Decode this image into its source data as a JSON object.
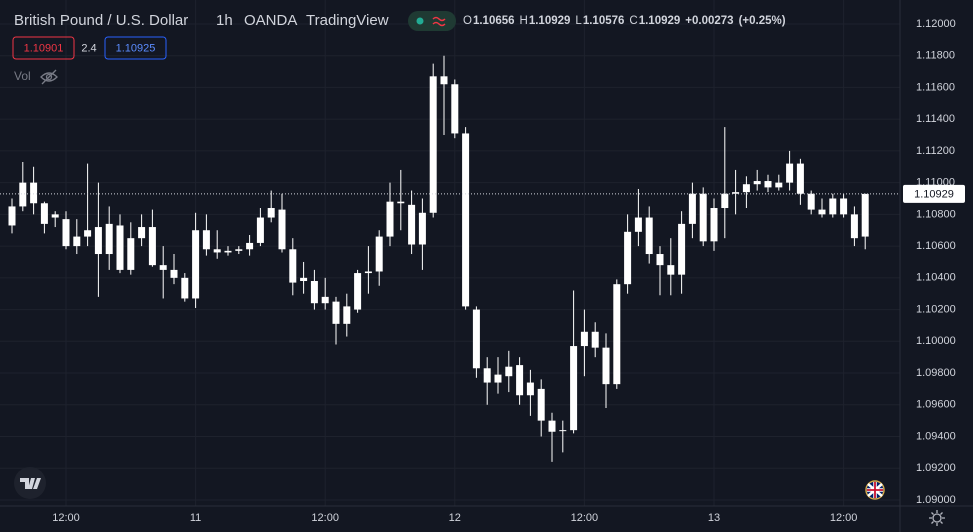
{
  "chart_data": {
    "type": "candlestick",
    "title": "British Pound / U.S. Dollar",
    "interval": "1h",
    "source": "OANDA",
    "platform": "TradingView",
    "ohlc_legend": [
      {
        "key": "O",
        "value": 1.10656
      },
      {
        "key": "H",
        "value": 1.10929
      },
      {
        "key": "L",
        "value": 1.10576
      },
      {
        "key": "C",
        "value": 1.10929
      }
    ],
    "change": {
      "value": 0.00273,
      "label": "+0.00273"
    },
    "change_percent": {
      "value": 0.25,
      "label": "(+0.25%)"
    },
    "bid": 1.10901,
    "spread": 2.4,
    "ask": 1.10925,
    "volume_label": "Vol",
    "color": "#ffffff",
    "grid": true,
    "categories": [
      null,
      null,
      null,
      null,
      null,
      "12:00",
      null,
      null,
      null,
      null,
      null,
      null,
      null,
      null,
      null,
      null,
      null,
      "11",
      null,
      null,
      null,
      null,
      null,
      null,
      null,
      null,
      null,
      null,
      null,
      "12:00",
      null,
      null,
      null,
      null,
      null,
      null,
      null,
      null,
      null,
      null,
      null,
      "12",
      null,
      null,
      null,
      null,
      null,
      null,
      null,
      null,
      null,
      null,
      null,
      "12:00",
      null,
      null,
      null,
      null,
      null,
      null,
      null,
      null,
      null,
      null,
      null,
      "13",
      null,
      null,
      null,
      null,
      null,
      null,
      null,
      null,
      null,
      null,
      null,
      "12:00",
      null,
      null
    ],
    "open": [
      1.1073,
      1.1085,
      1.11,
      1.1087,
      1.1078,
      1.1077,
      1.106,
      1.1066,
      1.1072,
      1.1055,
      1.1073,
      1.1045,
      1.1065,
      1.1072,
      1.1048,
      1.1045,
      1.104,
      1.1027,
      1.107,
      1.1058,
      1.1056,
      1.1057,
      1.1058,
      1.1062,
      1.1078,
      1.1083,
      1.1058,
      1.104,
      1.1038,
      1.1024,
      1.1025,
      1.1011,
      1.102,
      1.1043,
      1.1044,
      1.1066,
      1.1088,
      1.1086,
      1.1061,
      1.1081,
      1.1167,
      1.1162,
      1.1131,
      1.102,
      1.0983,
      1.0974,
      1.0978,
      1.0985,
      1.0966,
      1.097,
      1.095,
      1.0944,
      1.0944,
      1.0997,
      1.1006,
      1.0996,
      1.0973,
      1.1036,
      1.1069,
      1.1078,
      1.1055,
      1.1048,
      1.1042,
      1.1074,
      1.1093,
      1.1063,
      1.1084,
      1.1093,
      1.1094,
      1.1099,
      1.1101,
      1.1097,
      1.11,
      1.1112,
      1.1093,
      1.1083,
      1.108,
      1.109,
      1.108,
      1.1066
    ],
    "high": [
      1.109,
      1.1113,
      1.111,
      1.1088,
      1.1082,
      1.1082,
      1.1077,
      1.1112,
      1.11,
      1.1085,
      1.108,
      1.1075,
      1.108,
      1.1083,
      1.106,
      1.1055,
      1.1043,
      1.1081,
      1.108,
      1.107,
      1.106,
      1.106,
      1.1067,
      1.1084,
      1.1095,
      1.1093,
      1.1065,
      1.105,
      1.1045,
      1.104,
      1.1028,
      1.103,
      1.1045,
      1.106,
      1.107,
      1.11,
      1.1108,
      1.1095,
      1.109,
      1.1175,
      1.118,
      1.1165,
      1.1135,
      1.1022,
      1.099,
      1.099,
      1.0994,
      1.099,
      1.0982,
      1.0976,
      1.0955,
      1.095,
      1.1032,
      1.102,
      1.1012,
      1.1005,
      1.1039,
      1.108,
      1.1096,
      1.1085,
      1.106,
      1.1065,
      1.1082,
      1.11,
      1.1097,
      1.109,
      1.1135,
      1.1108,
      1.1104,
      1.1108,
      1.1105,
      1.1105,
      1.112,
      1.1115,
      1.1095,
      1.109,
      1.1093,
      1.1093,
      1.1085,
      1.1093
    ],
    "low": [
      1.1068,
      1.1082,
      1.108,
      1.1068,
      1.1072,
      1.1058,
      1.1055,
      1.106,
      1.1028,
      1.1045,
      1.1043,
      1.1042,
      1.106,
      1.1047,
      1.1027,
      1.1036,
      1.1025,
      1.1021,
      1.1054,
      1.1052,
      1.1054,
      1.1055,
      1.1054,
      1.106,
      1.1075,
      1.1056,
      1.1029,
      1.103,
      1.102,
      1.102,
      1.0998,
      1.1003,
      1.1018,
      1.103,
      1.1035,
      1.106,
      1.107,
      1.1055,
      1.1045,
      1.1078,
      1.113,
      1.1128,
      1.102,
      1.0977,
      1.096,
      1.0967,
      1.0968,
      1.096,
      1.0953,
      1.094,
      1.0924,
      1.093,
      1.0942,
      1.0978,
      1.099,
      1.0958,
      1.097,
      1.103,
      1.106,
      1.1049,
      1.1029,
      1.1029,
      1.103,
      1.1065,
      1.106,
      1.1057,
      1.1065,
      1.108,
      1.1084,
      1.1095,
      1.1094,
      1.1095,
      1.1095,
      1.1086,
      1.108,
      1.1078,
      1.1078,
      1.1078,
      1.106,
      1.1058
    ],
    "close": [
      1.1085,
      1.11,
      1.1087,
      1.1074,
      1.108,
      1.106,
      1.1066,
      1.107,
      1.1055,
      1.1074,
      1.1045,
      1.1065,
      1.1072,
      1.1048,
      1.1045,
      1.104,
      1.1027,
      1.107,
      1.1058,
      1.1056,
      1.1057,
      1.1058,
      1.1062,
      1.1078,
      1.1084,
      1.1058,
      1.1037,
      1.1038,
      1.1024,
      1.1028,
      1.1011,
      1.1022,
      1.1043,
      1.1044,
      1.1066,
      1.1088,
      1.1087,
      1.1061,
      1.1081,
      1.1167,
      1.1162,
      1.1131,
      1.1022,
      1.0983,
      1.0974,
      1.0979,
      1.0984,
      1.0966,
      1.0974,
      1.095,
      1.0943,
      1.0944,
      1.0997,
      1.1006,
      1.0996,
      1.0973,
      1.1036,
      1.1069,
      1.1078,
      1.1055,
      1.1048,
      1.1042,
      1.1074,
      1.1093,
      1.1063,
      1.1084,
      1.1093,
      1.1094,
      1.1099,
      1.1101,
      1.1097,
      1.11,
      1.1112,
      1.1093,
      1.1083,
      1.108,
      1.109,
      1.108,
      1.1065,
      1.10929
    ],
    "ylim": [
      1.08962,
      1.12151
    ],
    "yticks": [
      {
        "value": 1.12,
        "label": "1.12000"
      },
      {
        "value": 1.118,
        "label": "1.11800"
      },
      {
        "value": 1.116,
        "label": "1.11600"
      },
      {
        "value": 1.114,
        "label": "1.11400"
      },
      {
        "value": 1.112,
        "label": "1.11200"
      },
      {
        "value": 1.11,
        "label": "1.11000"
      },
      {
        "value": 1.108,
        "label": "1.10800"
      },
      {
        "value": 1.106,
        "label": "1.10600"
      },
      {
        "value": 1.104,
        "label": "1.10400"
      },
      {
        "value": 1.102,
        "label": "1.10200"
      },
      {
        "value": 1.1,
        "label": "1.10000"
      },
      {
        "value": 1.098,
        "label": "1.09800"
      },
      {
        "value": 1.096,
        "label": "1.09600"
      },
      {
        "value": 1.094,
        "label": "1.09400"
      },
      {
        "value": 1.092,
        "label": "1.09200"
      },
      {
        "value": 1.09,
        "label": "1.09000"
      }
    ]
  }
}
